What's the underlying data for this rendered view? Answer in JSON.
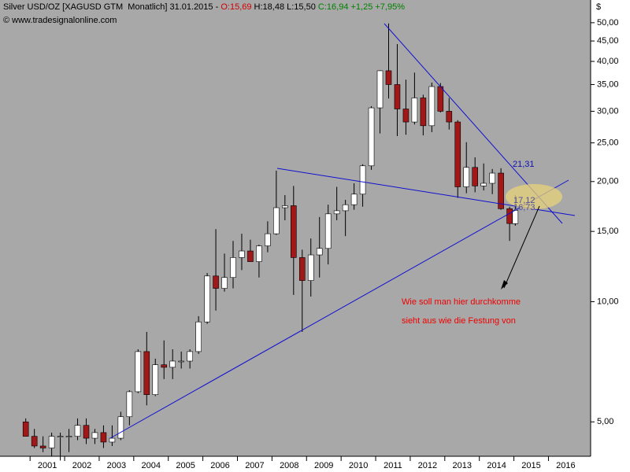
{
  "chart_data": {
    "type": "candlestick",
    "header": [
      "Silver USD/OZ [XAGUSD GTM  Monatlich] 31.01.2015",
      "-",
      "O:15,69",
      "H:18,48 L:15,50",
      "C:16,94 +1,25 +7,95%"
    ],
    "source": "© www.tradesignalonline.com",
    "y_unit": "$",
    "annotations": [
      "21,31",
      "17,12",
      "16,73",
      "Wie soll man hier durchkomme",
      "sieht aus wie die Festung von"
    ],
    "log_scale": true,
    "up_color": "#ffffff",
    "down_color": "#a01818",
    "wick_color": "#000000",
    "x": [
      2000.875,
      2001.125,
      2001.375,
      2001.625,
      2001.875,
      2002.125,
      2002.375,
      2002.625,
      2002.875,
      2003.125,
      2003.375,
      2003.625,
      2003.875,
      2004.125,
      2004.375,
      2004.625,
      2004.875,
      2005.125,
      2005.375,
      2005.625,
      2005.875,
      2006.125,
      2006.375,
      2006.625,
      2006.875,
      2007.125,
      2007.375,
      2007.625,
      2007.875,
      2008.125,
      2008.375,
      2008.625,
      2008.875,
      2009.125,
      2009.375,
      2009.625,
      2009.875,
      2010.125,
      2010.375,
      2010.625,
      2010.875,
      2011.125,
      2011.375,
      2011.625,
      2011.875,
      2012.125,
      2012.375,
      2012.625,
      2012.875,
      2013.125,
      2013.375,
      2013.625,
      2013.875,
      2014.125,
      2014.375,
      2014.625,
      2014.875,
      2015.04
    ],
    "open": [
      5.0,
      4.6,
      4.35,
      4.3,
      4.6,
      4.6,
      4.6,
      4.9,
      4.55,
      4.7,
      4.45,
      4.55,
      5.15,
      5.95,
      7.5,
      5.85,
      6.95,
      6.85,
      7.1,
      7.1,
      7.5,
      8.9,
      11.6,
      10.8,
      11.5,
      12.9,
      13.4,
      12.6,
      13.8,
      14.8,
      17.2,
      17.4,
      12.9,
      11.3,
      13.1,
      13.6,
      16.6,
      16.9,
      17.5,
      18.6,
      21.9,
      30.6,
      37.9,
      35.0,
      30.4,
      28.2,
      32.4,
      27.6,
      34.6,
      30.0,
      28.2,
      19.4,
      21.7,
      19.5,
      19.8,
      21.0,
      17.1,
      15.69
    ],
    "high": [
      5.1,
      4.8,
      4.6,
      4.7,
      4.7,
      4.8,
      5.1,
      5.1,
      4.8,
      4.9,
      4.9,
      5.3,
      6.0,
      7.6,
      8.4,
      7.2,
      8.0,
      7.6,
      7.5,
      7.6,
      9.2,
      11.8,
      15.2,
      13.2,
      14.2,
      14.8,
      14.3,
      13.9,
      15.9,
      21.3,
      18.5,
      19.5,
      13.5,
      14.4,
      16.3,
      17.5,
      19.4,
      18.0,
      19.8,
      22.1,
      30.9,
      38.0,
      49.8,
      44.2,
      36.0,
      37.5,
      33.0,
      35.4,
      35.3,
      32.4,
      28.5,
      25.1,
      23.0,
      22.2,
      21.5,
      21.6,
      17.3,
      18.48
    ],
    "low": [
      4.6,
      4.3,
      4.2,
      4.1,
      4.0,
      4.2,
      4.5,
      4.4,
      4.4,
      4.3,
      4.35,
      4.5,
      4.9,
      5.9,
      5.5,
      5.8,
      6.4,
      6.4,
      6.8,
      6.8,
      7.4,
      8.8,
      9.5,
      10.6,
      10.8,
      12.0,
      12.6,
      11.5,
      13.3,
      14.7,
      16.0,
      10.4,
      8.4,
      10.3,
      11.5,
      12.4,
      16.0,
      14.6,
      17.0,
      17.3,
      21.4,
      26.4,
      32.3,
      26.0,
      26.2,
      27.8,
      26.1,
      26.6,
      29.8,
      27.0,
      18.2,
      18.7,
      18.8,
      19.0,
      18.6,
      17.0,
      14.2,
      15.5
    ],
    "close": [
      4.6,
      4.35,
      4.3,
      4.6,
      4.6,
      4.6,
      4.9,
      4.55,
      4.7,
      4.45,
      4.55,
      5.15,
      5.95,
      7.5,
      5.85,
      6.95,
      6.85,
      7.1,
      7.1,
      7.5,
      8.9,
      11.6,
      10.8,
      11.5,
      12.9,
      13.4,
      12.6,
      13.8,
      14.8,
      17.2,
      17.4,
      12.9,
      11.3,
      13.1,
      13.6,
      16.6,
      16.9,
      17.5,
      18.6,
      21.9,
      30.6,
      37.9,
      35.0,
      30.4,
      28.2,
      32.4,
      27.6,
      34.6,
      30.0,
      28.2,
      19.4,
      21.7,
      19.5,
      19.8,
      21.0,
      17.1,
      15.7,
      16.94
    ],
    "xlim": [
      2000.13,
      2017.22
    ],
    "xticks": [
      2001,
      2002,
      2003,
      2004,
      2005,
      2006,
      2007,
      2008,
      2009,
      2010,
      2011,
      2012,
      2013,
      2014,
      2015,
      2016
    ],
    "ylim": [
      4.1,
      57
    ],
    "yticks": [
      {
        "value": 5,
        "label": "5,00"
      },
      {
        "value": 10,
        "label": "10,00"
      },
      {
        "value": 15,
        "label": "15,00"
      },
      {
        "value": 20,
        "label": "20,00"
      },
      {
        "value": 25,
        "label": "25,00"
      },
      {
        "value": 30,
        "label": "30,00"
      },
      {
        "value": 35,
        "label": "35,00"
      },
      {
        "value": 40,
        "label": "40,00"
      },
      {
        "value": 45,
        "label": "45,00"
      },
      {
        "value": 50,
        "label": "50,00"
      }
    ]
  }
}
